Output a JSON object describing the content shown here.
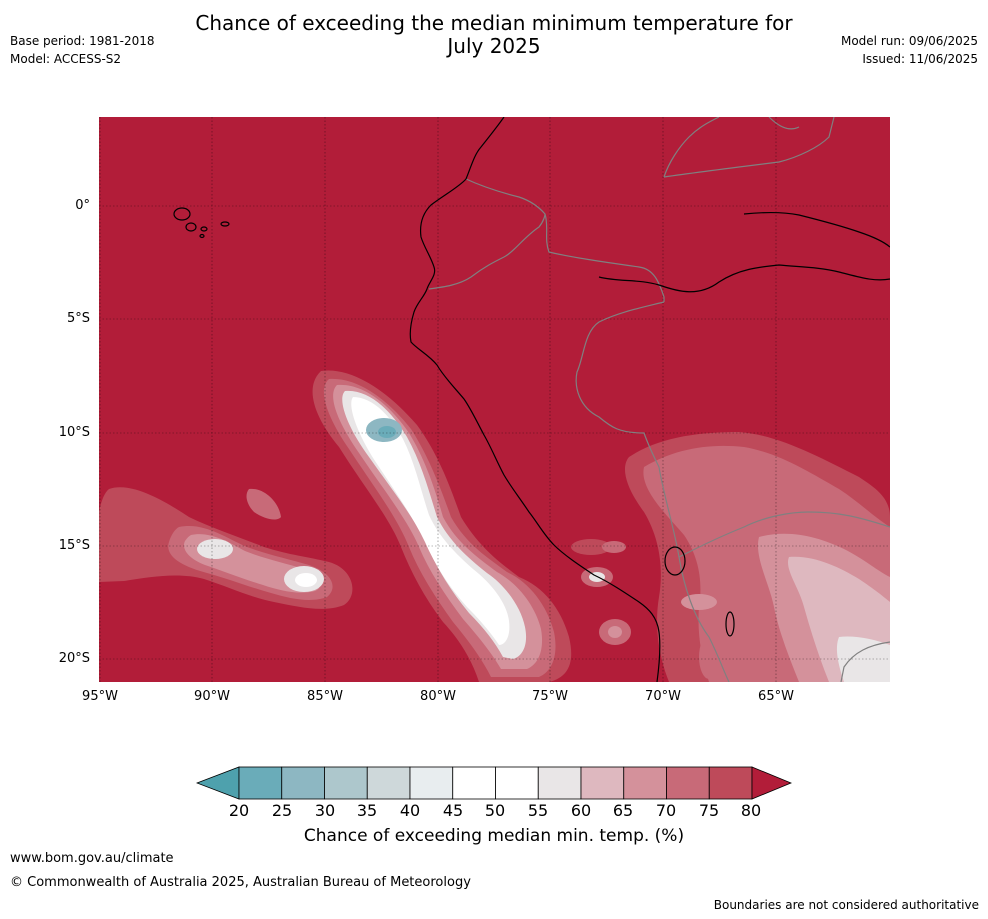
{
  "title_line1": "Chance of exceeding the median minimum temperature for",
  "title_line2": "July 2025",
  "base_period": "Base period: 1981-2018",
  "model": "Model: ACCESS-S2",
  "model_run": "Model run: 09/06/2025",
  "issued": "Issued: 11/06/2025",
  "lat_labels": [
    "0°",
    "5°S",
    "10°S",
    "15°S",
    "20°S"
  ],
  "lon_labels": [
    "95°W",
    "90°W",
    "85°W",
    "80°W",
    "75°W",
    "70°W",
    "65°W"
  ],
  "colorbar": {
    "ticks": [
      "20",
      "25",
      "30",
      "35",
      "40",
      "45",
      "50",
      "55",
      "60",
      "65",
      "70",
      "75",
      "80"
    ],
    "colors": [
      "#4ea1ad",
      "#6aacb9",
      "#8db7c2",
      "#adc7cc",
      "#ced8da",
      "#e8edef",
      "#ffffff",
      "#ffffff",
      "#e9e6e7",
      "#deb8bf",
      "#d4919b",
      "#c86a78",
      "#be4a5a",
      "#b21d39"
    ],
    "label": "Chance of exceeding median min. temp. (%)"
  },
  "colors": {
    "background_high": "#b21d39",
    "coastline": "#000000",
    "borders": "#808080"
  },
  "footer": {
    "url": "www.bom.gov.au/climate",
    "copyright": "© Commonwealth of Australia 2025, Australian Bureau of Meteorology",
    "disclaimer": "Boundaries are not considered authoritative"
  }
}
